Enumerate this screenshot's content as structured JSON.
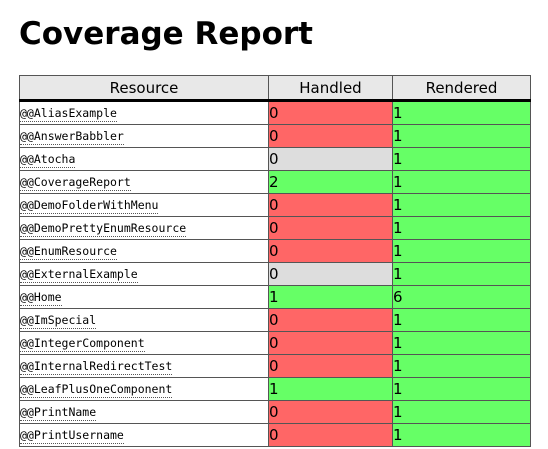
{
  "title": "Coverage Report",
  "columns": {
    "resource": "Resource",
    "handled": "Handled",
    "rendered": "Rendered"
  },
  "colors": {
    "red": "#ff6666",
    "green": "#66ff66",
    "gray": "#dddddd"
  },
  "rows": [
    {
      "resource": "@@AliasExample",
      "handled": "0",
      "handled_status": "red",
      "rendered": "1",
      "rendered_status": "green"
    },
    {
      "resource": "@@AnswerBabbler",
      "handled": "0",
      "handled_status": "red",
      "rendered": "1",
      "rendered_status": "green"
    },
    {
      "resource": "@@Atocha",
      "handled": "0",
      "handled_status": "gray",
      "rendered": "1",
      "rendered_status": "green"
    },
    {
      "resource": "@@CoverageReport",
      "handled": "2",
      "handled_status": "green",
      "rendered": "1",
      "rendered_status": "green"
    },
    {
      "resource": "@@DemoFolderWithMenu",
      "handled": "0",
      "handled_status": "red",
      "rendered": "1",
      "rendered_status": "green"
    },
    {
      "resource": "@@DemoPrettyEnumResource",
      "handled": "0",
      "handled_status": "red",
      "rendered": "1",
      "rendered_status": "green"
    },
    {
      "resource": "@@EnumResource",
      "handled": "0",
      "handled_status": "red",
      "rendered": "1",
      "rendered_status": "green"
    },
    {
      "resource": "@@ExternalExample",
      "handled": "0",
      "handled_status": "gray",
      "rendered": "1",
      "rendered_status": "green"
    },
    {
      "resource": "@@Home",
      "handled": "1",
      "handled_status": "green",
      "rendered": "6",
      "rendered_status": "green"
    },
    {
      "resource": "@@ImSpecial",
      "handled": "0",
      "handled_status": "red",
      "rendered": "1",
      "rendered_status": "green"
    },
    {
      "resource": "@@IntegerComponent",
      "handled": "0",
      "handled_status": "red",
      "rendered": "1",
      "rendered_status": "green"
    },
    {
      "resource": "@@InternalRedirectTest",
      "handled": "0",
      "handled_status": "red",
      "rendered": "1",
      "rendered_status": "green"
    },
    {
      "resource": "@@LeafPlusOneComponent",
      "handled": "1",
      "handled_status": "green",
      "rendered": "1",
      "rendered_status": "green"
    },
    {
      "resource": "@@PrintName",
      "handled": "0",
      "handled_status": "red",
      "rendered": "1",
      "rendered_status": "green"
    },
    {
      "resource": "@@PrintUsername",
      "handled": "0",
      "handled_status": "red",
      "rendered": "1",
      "rendered_status": "green"
    }
  ]
}
